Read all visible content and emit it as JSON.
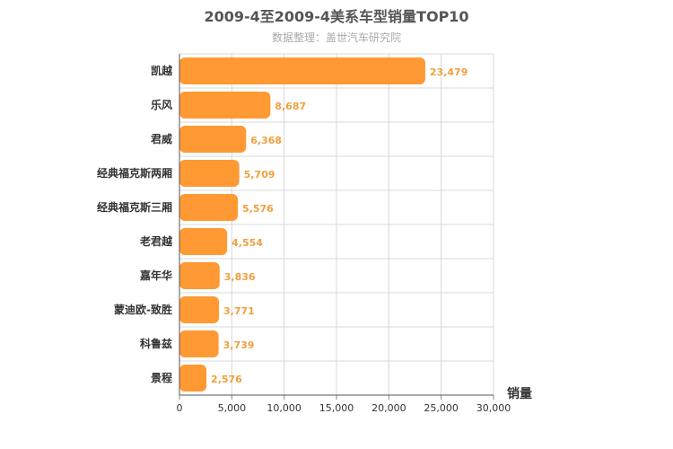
{
  "chart_data": {
    "type": "bar",
    "orientation": "horizontal",
    "title": "2009-4至2009-4美系车型销量TOP10",
    "subtitle": "数据整理：盖世汽车研究院",
    "categories": [
      "凯越",
      "乐风",
      "君威",
      "经典福克斯两厢",
      "经典福克斯三厢",
      "老君越",
      "嘉年华",
      "蒙迪欧-致胜",
      "科鲁兹",
      "景程"
    ],
    "values": [
      23479,
      8687,
      6368,
      5709,
      5576,
      4554,
      3836,
      3771,
      3739,
      2576
    ],
    "value_labels": [
      "23,479",
      "8,687",
      "6,368",
      "5,709",
      "5,576",
      "4,554",
      "3,836",
      "3,771",
      "3,739",
      "2,576"
    ],
    "xlabel": "",
    "ylabel": "销量",
    "xlim": [
      0,
      30000
    ],
    "ticks": [
      0,
      5000,
      10000,
      15000,
      20000,
      25000,
      30000
    ],
    "tick_labels": [
      "0",
      "5,000",
      "10,000",
      "15,000",
      "20,000",
      "25,000",
      "30,000"
    ],
    "bar_color": "#ff9933",
    "label_color": "#f0a040",
    "grid": true
  }
}
